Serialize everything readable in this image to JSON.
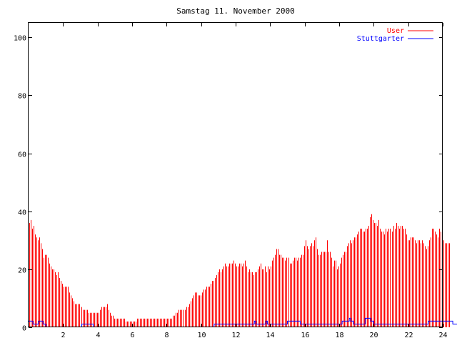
{
  "chart_data": {
    "type": "bar",
    "title": "Samstag 11. November 2000",
    "xlabel": "",
    "ylabel": "",
    "xlim": [
      0,
      24
    ],
    "ylim": [
      0,
      105
    ],
    "x_ticks": [
      "2",
      "4",
      "6",
      "8",
      "10",
      "12",
      "14",
      "16",
      "18",
      "20",
      "22",
      "24"
    ],
    "y_ticks": [
      "0",
      "20",
      "40",
      "60",
      "80",
      "100"
    ],
    "grid": false,
    "legend_position": "top-right",
    "bin_minutes": 5,
    "series": [
      {
        "name": "User",
        "type": "bar",
        "color": "#ff0000",
        "values": [
          36,
          37,
          34,
          35,
          32,
          31,
          30,
          31,
          29,
          27,
          24,
          25,
          25,
          24,
          22,
          21,
          20,
          20,
          19,
          18,
          19,
          17,
          16,
          15,
          14,
          14,
          14,
          14,
          12,
          11,
          10,
          9,
          8,
          8,
          8,
          8,
          7,
          6,
          6,
          6,
          6,
          5,
          5,
          5,
          5,
          5,
          5,
          5,
          5,
          6,
          7,
          7,
          7,
          7,
          8,
          6,
          5,
          4,
          4,
          3,
          3,
          3,
          3,
          3,
          3,
          3,
          3,
          2,
          2,
          2,
          2,
          2,
          2,
          2,
          2,
          3,
          3,
          3,
          3,
          3,
          3,
          3,
          3,
          3,
          3,
          3,
          3,
          3,
          3,
          3,
          3,
          3,
          3,
          3,
          3,
          3,
          3,
          3,
          3,
          3,
          4,
          4,
          5,
          5,
          6,
          6,
          6,
          6,
          6,
          7,
          7,
          8,
          9,
          10,
          11,
          12,
          12,
          11,
          11,
          11,
          12,
          13,
          13,
          14,
          14,
          14,
          15,
          16,
          16,
          17,
          18,
          19,
          20,
          19,
          20,
          21,
          22,
          21,
          21,
          22,
          22,
          22,
          23,
          22,
          21,
          21,
          22,
          22,
          21,
          22,
          23,
          21,
          19,
          20,
          19,
          19,
          18,
          19,
          19,
          20,
          21,
          22,
          20,
          20,
          21,
          19,
          21,
          20,
          21,
          23,
          24,
          25,
          27,
          27,
          25,
          25,
          24,
          24,
          23,
          24,
          24,
          22,
          22,
          23,
          24,
          24,
          23,
          24,
          24,
          25,
          25,
          28,
          30,
          28,
          27,
          28,
          29,
          28,
          30,
          31,
          27,
          25,
          25,
          26,
          26,
          26,
          26,
          30,
          26,
          26,
          24,
          21,
          23,
          23,
          20,
          21,
          22,
          24,
          25,
          26,
          26,
          28,
          29,
          30,
          29,
          30,
          31,
          31,
          32,
          33,
          34,
          34,
          33,
          33,
          34,
          34,
          35,
          38,
          39,
          37,
          36,
          36,
          35,
          37,
          34,
          33,
          33,
          32,
          34,
          33,
          34,
          34,
          33,
          35,
          34,
          36,
          35,
          34,
          35,
          35,
          34,
          34,
          32,
          30,
          30,
          31,
          31,
          31,
          30,
          29,
          30,
          30,
          29,
          30,
          29,
          28,
          27,
          28,
          30,
          31,
          34,
          34,
          33,
          32,
          31,
          34,
          33,
          31,
          30,
          29,
          29,
          29,
          29
        ]
      },
      {
        "name": "Stuttgarter",
        "type": "line",
        "color": "#0000ff",
        "values": [
          2,
          2,
          2,
          1,
          1,
          1,
          1,
          2,
          2,
          2,
          1,
          1,
          0,
          0,
          0,
          0,
          0,
          0,
          0,
          0,
          0,
          0,
          0,
          0,
          0,
          0,
          0,
          0,
          0,
          0,
          0,
          0,
          0,
          0,
          0,
          0,
          0,
          1,
          1,
          1,
          1,
          1,
          1,
          1,
          1,
          0,
          0,
          0,
          0,
          0,
          0,
          0,
          0,
          0,
          0,
          0,
          0,
          0,
          0,
          0,
          0,
          0,
          0,
          0,
          0,
          0,
          0,
          0,
          0,
          0,
          0,
          0,
          0,
          0,
          0,
          0,
          0,
          0,
          0,
          0,
          0,
          0,
          0,
          0,
          0,
          0,
          0,
          0,
          0,
          0,
          0,
          0,
          0,
          0,
          0,
          0,
          0,
          0,
          0,
          0,
          0,
          0,
          0,
          0,
          0,
          0,
          0,
          0,
          0,
          0,
          0,
          0,
          0,
          0,
          0,
          0,
          0,
          0,
          0,
          0,
          0,
          0,
          0,
          0,
          0,
          0,
          0,
          0,
          0,
          1,
          1,
          1,
          1,
          1,
          1,
          1,
          1,
          1,
          1,
          1,
          1,
          1,
          1,
          1,
          1,
          1,
          1,
          1,
          1,
          1,
          1,
          1,
          1,
          1,
          1,
          1,
          1,
          2,
          1,
          1,
          1,
          1,
          1,
          1,
          1,
          2,
          1,
          1,
          1,
          1,
          1,
          1,
          1,
          1,
          1,
          1,
          1,
          1,
          1,
          1,
          2,
          2,
          2,
          2,
          2,
          2,
          2,
          2,
          2,
          1,
          1,
          1,
          1,
          1,
          1,
          1,
          1,
          1,
          1,
          1,
          1,
          1,
          1,
          1,
          1,
          1,
          1,
          1,
          1,
          1,
          1,
          1,
          1,
          1,
          1,
          1,
          1,
          1,
          2,
          2,
          2,
          2,
          2,
          3,
          2,
          2,
          1,
          1,
          1,
          1,
          1,
          1,
          1,
          1,
          3,
          3,
          3,
          3,
          2,
          2,
          1,
          1,
          1,
          1,
          1,
          1,
          1,
          1,
          1,
          1,
          1,
          1,
          1,
          1,
          1,
          1,
          1,
          1,
          1,
          1,
          1,
          1,
          1,
          1,
          1,
          1,
          1,
          1,
          1,
          1,
          1,
          1,
          1,
          1,
          1,
          1,
          1,
          1,
          2,
          2,
          2,
          2,
          2,
          2,
          2,
          2,
          2,
          2,
          2,
          2,
          2,
          2,
          2,
          2,
          2,
          1,
          1,
          1,
          1,
          1,
          1,
          1,
          1,
          1,
          1,
          1,
          1,
          1,
          1
        ]
      }
    ]
  }
}
